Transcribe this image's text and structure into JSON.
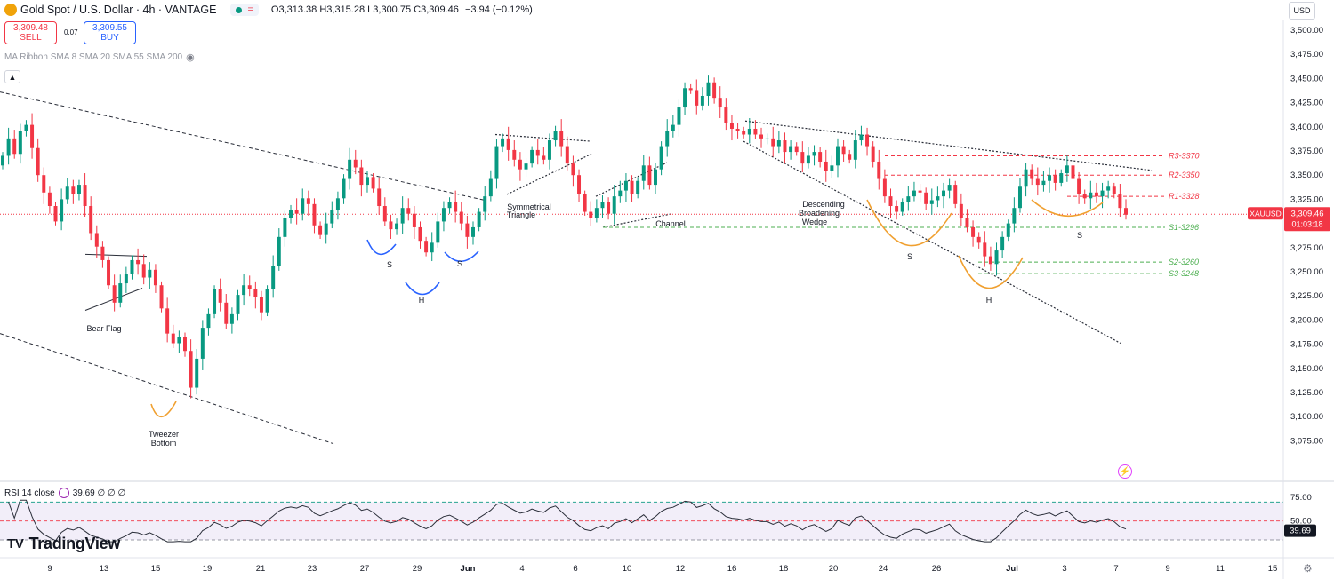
{
  "header": {
    "title": "Gold Spot / U.S. Dollar · 4h · VANTAGE",
    "open": "O3,313.38",
    "high": "H3,315.28",
    "low": "L3,300.75",
    "close": "C3,309.46",
    "change": "−3.94 (−0.12%)",
    "icons": [
      "gold-coin-icon",
      "green-dot-icon",
      "equals-icon"
    ]
  },
  "trade": {
    "sell_price": "3,309.48",
    "sell_label": "SELL",
    "spread": "0.07",
    "buy_price": "3,309.55",
    "buy_label": "BUY"
  },
  "indicator_ma": "MA Ribbon SMA 8 SMA 20 SMA 55 SMA 200",
  "currency": "USD",
  "rsi": {
    "label": "RSI 14 close",
    "value_text": "39.69 ∅ ∅ ∅",
    "current": "39.69",
    "ticks": [
      "75.00",
      "50.00"
    ]
  },
  "symbol_tag": {
    "symbol": "XAUUSD",
    "price": "3,309.46",
    "countdown": "01:03:18"
  },
  "brand": "TradingView",
  "colors": {
    "up": "#089981",
    "down": "#f23645",
    "rsi_line": "#2a2e39",
    "rsi_band": "#7e57c2",
    "resistance": "#f23645",
    "support": "#4caf50",
    "pattern": "#f0a030",
    "pattern_blue": "#2962ff"
  },
  "chart_data": {
    "type": "candlestick",
    "y_ticks": [
      "3,500.00",
      "3,475.00",
      "3,450.00",
      "3,425.00",
      "3,400.00",
      "3,375.00",
      "3,350.00",
      "3,325.00",
      "3,300.00",
      "3,275.00",
      "3,250.00",
      "3,225.00",
      "3,200.00",
      "3,175.00",
      "3,150.00",
      "3,125.00",
      "3,100.00",
      "3,075.00"
    ],
    "ylim": [
      3060,
      3510
    ],
    "x_ticks": [
      "9",
      "13",
      "15",
      "19",
      "21",
      "23",
      "27",
      "29",
      "Jun",
      "4",
      "6",
      "10",
      "12",
      "16",
      "18",
      "20",
      "24",
      "26",
      "Jul",
      "3",
      "7",
      "9",
      "11",
      "15"
    ],
    "current_price": 3309.46,
    "levels": [
      {
        "label": "R3-3370",
        "value": 3370,
        "kind": "resistance"
      },
      {
        "label": "R2-3350",
        "value": 3350,
        "kind": "resistance"
      },
      {
        "label": "R1-3328",
        "value": 3328,
        "kind": "resistance"
      },
      {
        "label": "S1-3296",
        "value": 3296,
        "kind": "support"
      },
      {
        "label": "S2-3260",
        "value": 3260,
        "kind": "support"
      },
      {
        "label": "S3-3248",
        "value": 3248,
        "kind": "support"
      }
    ],
    "annotations": [
      "Bear Flag",
      "Tweezer Bottom",
      "S",
      "H",
      "S",
      "Symmetrical Triangle",
      "Channel",
      "Descending Broadening Wedge",
      "S",
      "H",
      "S"
    ],
    "closes": [
      3370,
      3388,
      3372,
      3396,
      3402,
      3378,
      3350,
      3332,
      3318,
      3302,
      3325,
      3338,
      3330,
      3340,
      3318,
      3290,
      3276,
      3262,
      3236,
      3218,
      3238,
      3248,
      3262,
      3258,
      3244,
      3252,
      3236,
      3212,
      3186,
      3176,
      3182,
      3168,
      3130,
      3160,
      3192,
      3206,
      3232,
      3218,
      3196,
      3206,
      3226,
      3236,
      3232,
      3224,
      3208,
      3232,
      3256,
      3286,
      3306,
      3314,
      3310,
      3326,
      3320,
      3298,
      3288,
      3300,
      3314,
      3326,
      3346,
      3366,
      3358,
      3340,
      3348,
      3336,
      3318,
      3302,
      3294,
      3300,
      3316,
      3310,
      3296,
      3282,
      3270,
      3280,
      3302,
      3316,
      3322,
      3312,
      3300,
      3286,
      3296,
      3312,
      3328,
      3346,
      3380,
      3388,
      3376,
      3366,
      3356,
      3362,
      3376,
      3370,
      3366,
      3386,
      3396,
      3380,
      3362,
      3350,
      3330,
      3312,
      3306,
      3316,
      3322,
      3310,
      3328,
      3334,
      3344,
      3330,
      3344,
      3360,
      3340,
      3356,
      3380,
      3396,
      3402,
      3420,
      3440,
      3438,
      3422,
      3432,
      3446,
      3430,
      3420,
      3404,
      3398,
      3396,
      3392,
      3398,
      3392,
      3388,
      3388,
      3380,
      3386,
      3374,
      3380,
      3374,
      3362,
      3370,
      3374,
      3364,
      3354,
      3360,
      3380,
      3372,
      3366,
      3386,
      3392,
      3380,
      3364,
      3346,
      3328,
      3318,
      3312,
      3322,
      3328,
      3334,
      3332,
      3320,
      3324,
      3328,
      3334,
      3340,
      3320,
      3306,
      3296,
      3286,
      3280,
      3266,
      3258,
      3272,
      3286,
      3300,
      3316,
      3338,
      3356,
      3346,
      3340,
      3344,
      3350,
      3342,
      3352,
      3360,
      3346,
      3330,
      3326,
      3332,
      3328,
      3334,
      3338,
      3330,
      3316,
      3309
    ]
  }
}
